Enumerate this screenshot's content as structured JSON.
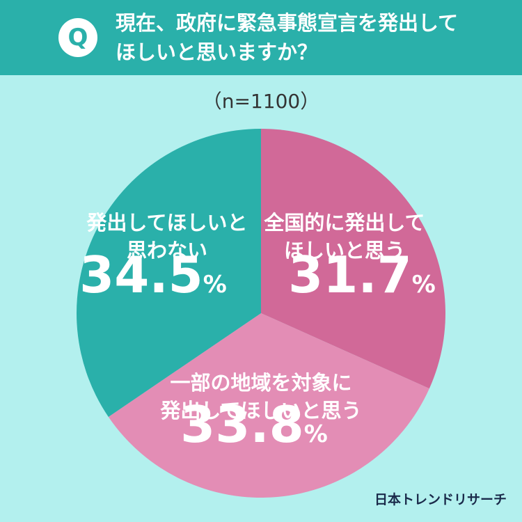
{
  "header": {
    "badge": "Q",
    "question_lines": [
      "現在、政府に緊急事態宣言を発出して",
      "ほしいと思いますか？"
    ]
  },
  "sample_size": "（n=1100）",
  "chart_data": {
    "type": "pie",
    "title": "現在、政府に緊急事態宣言を発出してほしいと思いますか？",
    "unit": "%",
    "start_angle_deg": 0,
    "direction": "clockwise",
    "slices": [
      {
        "label_lines": [
          "全国的に発出して",
          "ほしいと思う"
        ],
        "value": 31.7,
        "value_text": "31.7",
        "color": "#d16998"
      },
      {
        "label_lines": [
          "一部の地域を対象に",
          "発出してほしいと思う"
        ],
        "value": 33.8,
        "value_text": "33.8",
        "color": "#e38db5"
      },
      {
        "label_lines": [
          "発出してほしいと",
          "思わない"
        ],
        "value": 34.5,
        "value_text": "34.5",
        "color": "#2ab0aa"
      }
    ]
  },
  "colors": {
    "background": "#b3f0ee",
    "header": "#2ab0aa",
    "label_text": "#ffffff"
  },
  "brand": "日本トレンドリサーチ"
}
